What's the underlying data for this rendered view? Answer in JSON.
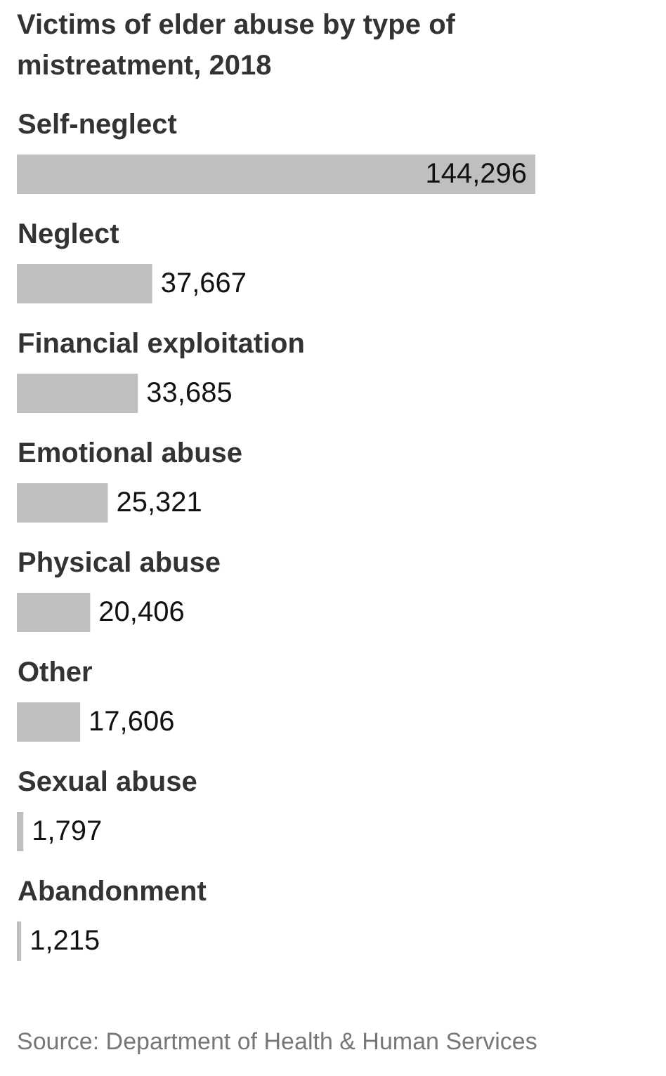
{
  "chart_data": {
    "type": "bar",
    "orientation": "horizontal",
    "title": "Victims of elder abuse by type of mistreatment, 2018",
    "categories": [
      "Self-neglect",
      "Neglect",
      "Financial exploitation",
      "Emotional abuse",
      "Physical abuse",
      "Other",
      "Sexual abuse",
      "Abandonment"
    ],
    "values": [
      144296,
      37667,
      33685,
      25321,
      20406,
      17606,
      1797,
      1215
    ],
    "value_labels": [
      "144,296",
      "37,667",
      "33,685",
      "25,321",
      "20,406",
      "17,606",
      "1,797",
      "1,215"
    ],
    "color": "#bfbfbf",
    "annotations": [
      "Source: Department of Health & Human Services"
    ]
  }
}
